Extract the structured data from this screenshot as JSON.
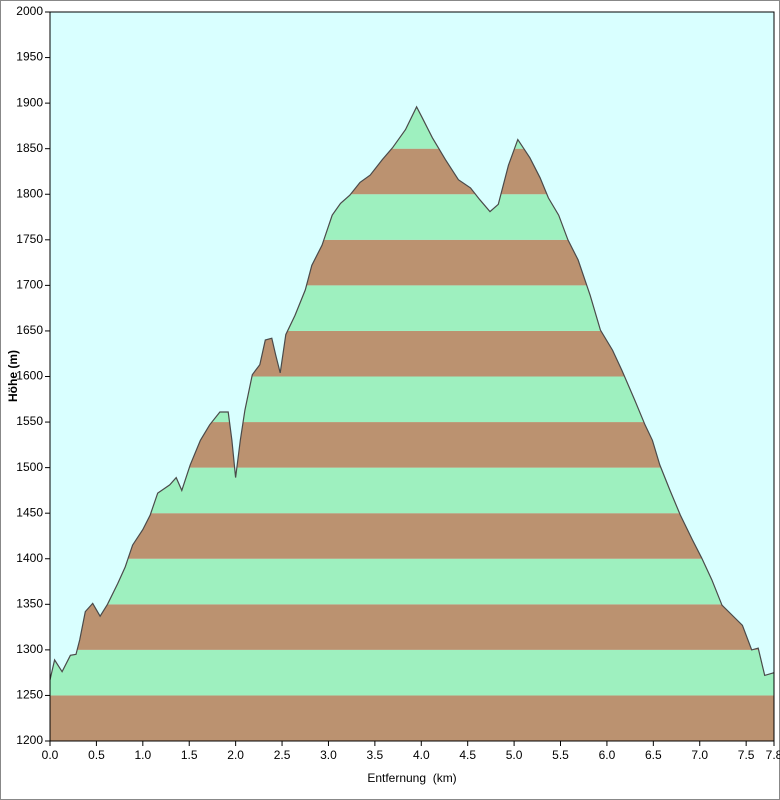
{
  "chart_data": {
    "type": "area",
    "x_label": "Entfernung  (km)",
    "y_label": "Höhe (m)",
    "background": "#d9ffff",
    "band_colors": [
      "#bb9270",
      "#9ef0bf"
    ],
    "line_color": "#4a4a4a",
    "xlim": [
      0,
      7.8
    ],
    "ylim": [
      1200,
      2000
    ],
    "xticks": [
      {
        "value": 0,
        "label": "0.0"
      },
      {
        "value": 0.5,
        "label": "0.5"
      },
      {
        "value": 1,
        "label": "1.0"
      },
      {
        "value": 1.5,
        "label": "1.5"
      },
      {
        "value": 2,
        "label": "2.0"
      },
      {
        "value": 2.5,
        "label": "2.5"
      },
      {
        "value": 3,
        "label": "3.0"
      },
      {
        "value": 3.5,
        "label": "3.5"
      },
      {
        "value": 4,
        "label": "4.0"
      },
      {
        "value": 4.5,
        "label": "4.5"
      },
      {
        "value": 5,
        "label": "5.0"
      },
      {
        "value": 5.5,
        "label": "5.5"
      },
      {
        "value": 6,
        "label": "6.0"
      },
      {
        "value": 6.5,
        "label": "6.5"
      },
      {
        "value": 7,
        "label": "7.0"
      },
      {
        "value": 7.5,
        "label": "7.5"
      },
      7.8
    ],
    "yticks": [
      1200,
      1250,
      1300,
      1350,
      1400,
      1450,
      1500,
      1550,
      1600,
      1650,
      1700,
      1750,
      1800,
      1850,
      1900,
      1950,
      2000
    ],
    "x": [
      0,
      0.05,
      0.13,
      0.22,
      0.28,
      0.32,
      0.38,
      0.46,
      0.54,
      0.62,
      0.73,
      0.81,
      0.89,
      1.0,
      1.08,
      1.16,
      1.29,
      1.36,
      1.42,
      1.51,
      1.62,
      1.72,
      1.83,
      1.92,
      1.96,
      2.0,
      2.05,
      2.1,
      2.18,
      2.26,
      2.32,
      2.39,
      2.43,
      2.48,
      2.54,
      2.64,
      2.75,
      2.82,
      2.93,
      3.04,
      3.13,
      3.23,
      3.34,
      3.45,
      3.58,
      3.69,
      3.83,
      3.95,
      4.01,
      4.12,
      4.26,
      4.4,
      4.53,
      4.63,
      4.74,
      4.83,
      4.94,
      5.04,
      5.17,
      5.28,
      5.37,
      5.48,
      5.58,
      5.69,
      5.82,
      5.93,
      6.06,
      6.16,
      6.3,
      6.41,
      6.49,
      6.57,
      6.68,
      6.79,
      6.92,
      7.02,
      7.13,
      7.24,
      7.38,
      7.46,
      7.56,
      7.63,
      7.7,
      7.8
    ],
    "values": [
      1267,
      1289,
      1276,
      1294,
      1295,
      1311,
      1342,
      1351,
      1337,
      1350,
      1373,
      1391,
      1415,
      1432,
      1448,
      1472,
      1481,
      1489,
      1475,
      1503,
      1530,
      1547,
      1561,
      1561,
      1530,
      1489,
      1530,
      1563,
      1602,
      1613,
      1640,
      1642,
      1624,
      1604,
      1646,
      1667,
      1695,
      1722,
      1744,
      1777,
      1790,
      1799,
      1813,
      1821,
      1838,
      1851,
      1871,
      1896,
      1884,
      1862,
      1838,
      1816,
      1807,
      1794,
      1781,
      1789,
      1832,
      1860,
      1840,
      1818,
      1796,
      1777,
      1750,
      1728,
      1689,
      1651,
      1629,
      1607,
      1574,
      1547,
      1530,
      1503,
      1475,
      1448,
      1421,
      1401,
      1377,
      1349,
      1335,
      1327,
      1300,
      1302,
      1272,
      1275
    ]
  }
}
